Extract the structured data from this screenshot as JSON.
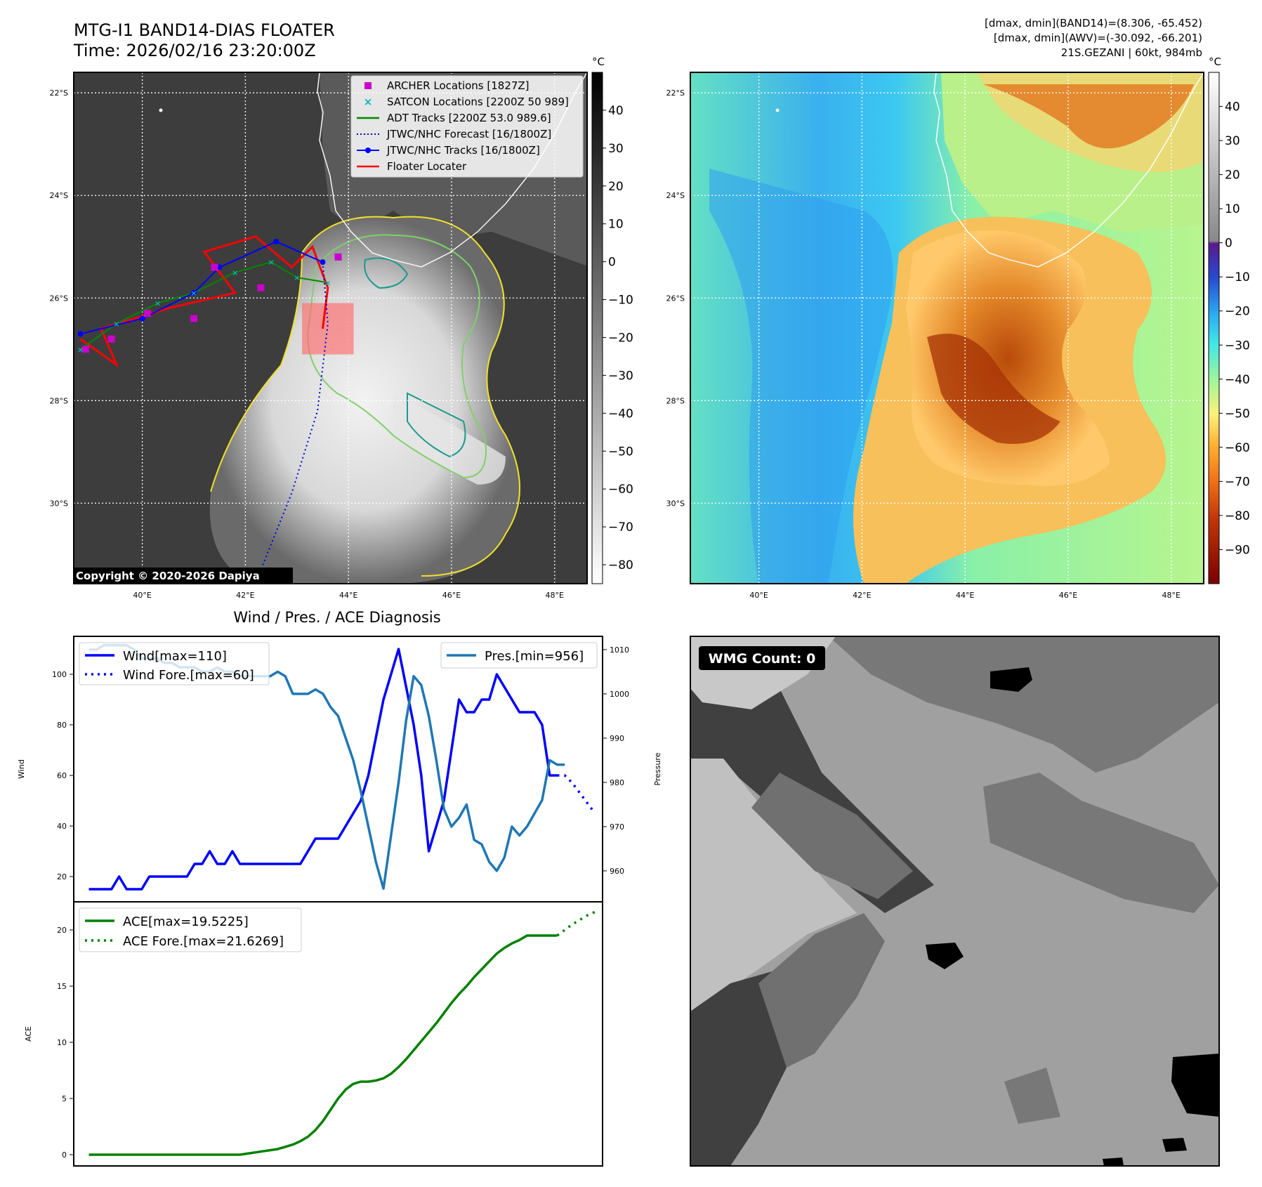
{
  "header": {
    "title": "MTG-I1 BAND14-DIAS FLOATER",
    "time": "Time: 2026/02/16 23:20:00Z",
    "stats_band14": "[dmax, dmin](BAND14)=(8.306, -65.452)",
    "stats_awv": "[dmax, dmin](AWV)=(-30.092, -66.201)",
    "storm": "21S.GEZANI | 60kt, 984mb"
  },
  "map": {
    "lat_labels": [
      "22°S",
      "24°S",
      "26°S",
      "28°S",
      "30°S"
    ],
    "lat_values": [
      -22,
      -24,
      -26,
      -28,
      -30
    ],
    "lon_labels": [
      "40°E",
      "42°E",
      "44°E",
      "46°E",
      "48°E"
    ],
    "lon_values": [
      40,
      42,
      44,
      46,
      48
    ],
    "extent": {
      "lon_min": 38.67,
      "lon_max": 48.63,
      "lat_min": -31.57,
      "lat_max": -21.6
    },
    "copyright": "Copyright © 2020-2026 Dapiya",
    "colorbar_unit": "°C",
    "ir_colorbar_ticks": [
      "40",
      "30",
      "20",
      "10",
      "0",
      "−10",
      "−20",
      "−30",
      "−40",
      "−50",
      "−60",
      "−70",
      "−80"
    ],
    "ir_colorbar_values": [
      40,
      30,
      20,
      10,
      0,
      -10,
      -20,
      -30,
      -40,
      -50,
      -60,
      -70,
      -80
    ],
    "ir_range": [
      -85,
      50
    ],
    "awv_colorbar_ticks": [
      "40",
      "30",
      "20",
      "10",
      "0",
      "−10",
      "−20",
      "−30",
      "−40",
      "−50",
      "−60",
      "−70",
      "−80",
      "−90"
    ],
    "awv_colorbar_values": [
      40,
      30,
      20,
      10,
      0,
      -10,
      -20,
      -30,
      -40,
      -50,
      -60,
      -70,
      -80,
      -90
    ],
    "awv_range": [
      -100,
      50
    ]
  },
  "legend": {
    "items": [
      {
        "label": "ARCHER Locations [1827Z]",
        "color": "#cc00cc",
        "style": "square"
      },
      {
        "label": "SATCON Locations [2200Z 50 989]",
        "color": "#00b5b5",
        "style": "x"
      },
      {
        "label": "ADT Tracks [2200Z 53.0 989.6]",
        "color": "#008800",
        "style": "line"
      },
      {
        "label": "JTWC/NHC Forecast [16/1800Z]",
        "color": "#0000dd",
        "style": "dotted"
      },
      {
        "label": "JTWC/NHC Tracks [16/1800Z]",
        "color": "#0000ff",
        "style": "line-dot"
      },
      {
        "label": "Floater Locater",
        "color": "#ff0000",
        "style": "line"
      }
    ]
  },
  "tracks": {
    "jtwc": [
      [
        38.8,
        -26.7
      ],
      [
        40.0,
        -26.4
      ],
      [
        41.0,
        -25.9
      ],
      [
        41.5,
        -25.4
      ],
      [
        42.6,
        -24.9
      ],
      [
        43.5,
        -25.3
      ]
    ],
    "jtwc_forecast": [
      [
        43.5,
        -25.3
      ],
      [
        43.6,
        -26.5
      ],
      [
        43.4,
        -28.2
      ],
      [
        42.9,
        -29.8
      ],
      [
        42.3,
        -31.3
      ]
    ],
    "archer": [
      [
        38.9,
        -27.0
      ],
      [
        39.4,
        -26.8
      ],
      [
        40.1,
        -26.3
      ],
      [
        41.0,
        -26.4
      ],
      [
        41.4,
        -25.4
      ],
      [
        42.3,
        -25.8
      ],
      [
        43.8,
        -25.2
      ]
    ],
    "adt": [
      [
        38.8,
        -27.0
      ],
      [
        39.5,
        -26.5
      ],
      [
        40.3,
        -26.1
      ],
      [
        41.0,
        -25.9
      ],
      [
        41.8,
        -25.5
      ],
      [
        42.5,
        -25.3
      ],
      [
        43.0,
        -25.6
      ],
      [
        43.6,
        -25.7
      ]
    ],
    "floater": [
      [
        38.8,
        -26.8
      ],
      [
        39.5,
        -27.3
      ],
      [
        39.2,
        -26.6
      ],
      [
        40.5,
        -26.2
      ],
      [
        41.8,
        -25.9
      ],
      [
        41.2,
        -25.1
      ],
      [
        42.2,
        -24.8
      ],
      [
        42.9,
        -25.4
      ],
      [
        43.3,
        -25.0
      ],
      [
        43.6,
        -25.8
      ],
      [
        43.5,
        -26.6
      ]
    ],
    "floater_box": {
      "lon_min": 43.1,
      "lon_max": 44.1,
      "lat_min": -27.1,
      "lat_max": -26.1
    }
  },
  "colors": {
    "jtwc": "#0000ff",
    "forecast": "#0000dd",
    "adt": "#008800",
    "archer": "#cc00cc",
    "satcon": "#00b5b5",
    "floater": "#ff0000",
    "wind": "#0000ff",
    "pressure": "#1f77b4",
    "ace": "#008000"
  },
  "diagnosis": {
    "title": "Wind / Pres. / ACE Diagnosis",
    "wind_label": "Wind",
    "pressure_label": "Pressure",
    "ace_label": "ACE",
    "legend_wind": "Wind[max=110]",
    "legend_wind_fore": "Wind Fore.[max=60]",
    "legend_pres": "Pres.[min=956]",
    "legend_ace": "ACE[max=19.5225]",
    "legend_ace_fore": "ACE Fore.[max=21.6269]",
    "wind_ticks": [
      "20",
      "40",
      "60",
      "80",
      "100"
    ],
    "pres_ticks": [
      "960",
      "970",
      "980",
      "990",
      "1000",
      "1010"
    ],
    "ace_ticks": [
      "0",
      "5",
      "10",
      "15",
      "20"
    ]
  },
  "wmg": {
    "label": "WMG Count: 0"
  },
  "chart_data": [
    {
      "type": "line",
      "title": "Wind / Pres. / ACE Diagnosis",
      "ylabel": "Wind",
      "ylim": [
        10,
        115
      ],
      "y2label": "Pressure",
      "y2lim": [
        953,
        1013
      ],
      "series": [
        {
          "name": "Wind[max=110]",
          "axis": "left",
          "x": [
            0,
            1,
            2,
            3,
            4,
            5,
            6,
            7,
            8,
            9,
            10,
            11,
            12,
            13,
            14,
            15,
            16,
            17,
            18,
            19,
            20,
            21,
            22,
            23,
            24,
            25,
            26,
            27,
            28,
            29,
            30,
            31,
            32,
            33,
            34,
            35,
            36,
            37,
            38,
            39,
            40,
            41,
            42,
            43,
            44,
            45,
            46,
            47,
            48,
            49,
            50,
            51,
            52,
            53,
            54,
            55,
            56,
            57,
            58,
            59,
            60,
            61,
            62
          ],
          "values": [
            15,
            15,
            15,
            15,
            20,
            15,
            15,
            15,
            20,
            20,
            20,
            20,
            20,
            20,
            25,
            25,
            30,
            25,
            25,
            30,
            25,
            25,
            25,
            25,
            25,
            25,
            25,
            25,
            25,
            30,
            35,
            35,
            35,
            35,
            40,
            45,
            50,
            60,
            75,
            90,
            100,
            110,
            95,
            80,
            60,
            30,
            40,
            50,
            70,
            90,
            85,
            85,
            90,
            90,
            100,
            95,
            90,
            85,
            85,
            85,
            80,
            60,
            60
          ]
        },
        {
          "name": "Wind Fore.[max=60]",
          "axis": "left",
          "x": [
            62,
            63,
            64,
            65,
            66,
            67
          ],
          "values": [
            60,
            60,
            57,
            53,
            49,
            45
          ]
        },
        {
          "name": "Pres.[min=956]",
          "axis": "right",
          "x": [
            0,
            1,
            2,
            3,
            4,
            5,
            6,
            7,
            8,
            9,
            10,
            11,
            12,
            13,
            14,
            15,
            16,
            17,
            18,
            19,
            20,
            21,
            22,
            23,
            24,
            25,
            26,
            27,
            28,
            29,
            30,
            31,
            32,
            33,
            34,
            35,
            36,
            37,
            38,
            39,
            40,
            41,
            42,
            43,
            44,
            45,
            46,
            47,
            48,
            49,
            50,
            51,
            52,
            53,
            54,
            55,
            56,
            57,
            58,
            59,
            60,
            61,
            62,
            63
          ],
          "values": [
            1010,
            1010,
            1011,
            1011,
            1011,
            1011,
            1010,
            1008,
            1008,
            1008,
            1007,
            1007,
            1006,
            1006,
            1006,
            1005,
            1005,
            1006,
            1005,
            1005,
            1004,
            1004,
            1004,
            1004,
            1004,
            1005,
            1004,
            1000,
            1000,
            1000,
            1001,
            1000,
            997,
            995,
            990,
            985,
            978,
            970,
            962,
            956,
            968,
            980,
            994,
            1004,
            1002,
            995,
            985,
            974,
            970,
            972,
            975,
            967,
            966,
            962,
            960,
            963,
            970,
            968,
            970,
            973,
            976,
            985,
            984,
            984
          ]
        },
        {
          "name": "ACE[max=19.5225]",
          "axis": "ace",
          "x": [
            0,
            10,
            20,
            21,
            22,
            23,
            24,
            25,
            26,
            27,
            28,
            29,
            30,
            31,
            32,
            33,
            34,
            35,
            36,
            37,
            38,
            39,
            40,
            41,
            42,
            43,
            44,
            45,
            46,
            47,
            48,
            49,
            50,
            51,
            52,
            53,
            54,
            55,
            56,
            57,
            58,
            59,
            60,
            61,
            62
          ],
          "values": [
            0,
            0,
            0,
            0.1,
            0.2,
            0.3,
            0.4,
            0.5,
            0.7,
            0.9,
            1.2,
            1.6,
            2.2,
            3.0,
            4.0,
            5.0,
            5.8,
            6.3,
            6.5,
            6.5,
            6.6,
            6.8,
            7.2,
            7.8,
            8.5,
            9.3,
            10.1,
            10.9,
            11.7,
            12.6,
            13.5,
            14.3,
            15.0,
            15.8,
            16.5,
            17.2,
            17.9,
            18.4,
            18.8,
            19.1,
            19.5,
            19.5,
            19.5,
            19.5,
            19.5
          ]
        },
        {
          "name": "ACE Fore.[max=21.6269]",
          "axis": "ace",
          "x": [
            62,
            63,
            64,
            65,
            66,
            67
          ],
          "values": [
            19.5,
            20.0,
            20.5,
            20.9,
            21.3,
            21.6
          ]
        }
      ],
      "ace_ylim": [
        -1,
        22.5
      ],
      "legend_position": "upper-left / upper-right"
    }
  ]
}
